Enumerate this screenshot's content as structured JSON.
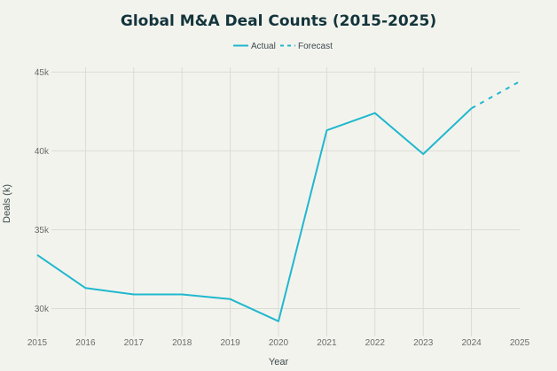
{
  "chart_data": {
    "type": "line",
    "title": "Global M&A Deal Counts (2015-2025)",
    "xlabel": "Year",
    "ylabel": "Deals (k)",
    "x": [
      2015,
      2016,
      2017,
      2018,
      2019,
      2020,
      2021,
      2022,
      2023,
      2024,
      2025
    ],
    "x_tick_labels": [
      "2015",
      "2016",
      "2017",
      "2018",
      "2019",
      "2020",
      "2021",
      "2022",
      "2023",
      "2024",
      "2025"
    ],
    "y_ticks": [
      30,
      35,
      40,
      45
    ],
    "y_tick_labels": [
      "30k",
      "35k",
      "40k",
      "45k"
    ],
    "ylim": [
      28.4,
      45.3
    ],
    "xlim": [
      2015,
      2025
    ],
    "grid": true,
    "legend_position": "top-center",
    "series": [
      {
        "name": "Actual",
        "style": "solid",
        "color": "#1FB8CD",
        "x": [
          2015,
          2016,
          2017,
          2018,
          2019,
          2020,
          2021,
          2022,
          2023,
          2024
        ],
        "values": [
          33.4,
          31.3,
          30.9,
          30.9,
          30.6,
          29.2,
          41.3,
          42.4,
          39.8,
          42.7
        ]
      },
      {
        "name": "Forecast",
        "style": "dashed",
        "color": "#1FB8CD",
        "x": [
          2024,
          2025
        ],
        "values": [
          42.7,
          44.4
        ]
      }
    ]
  },
  "colors": {
    "background": "#F3F3EE",
    "title": "#13343B",
    "series": "#1FB8CD",
    "grid": "#dcdcd6"
  }
}
